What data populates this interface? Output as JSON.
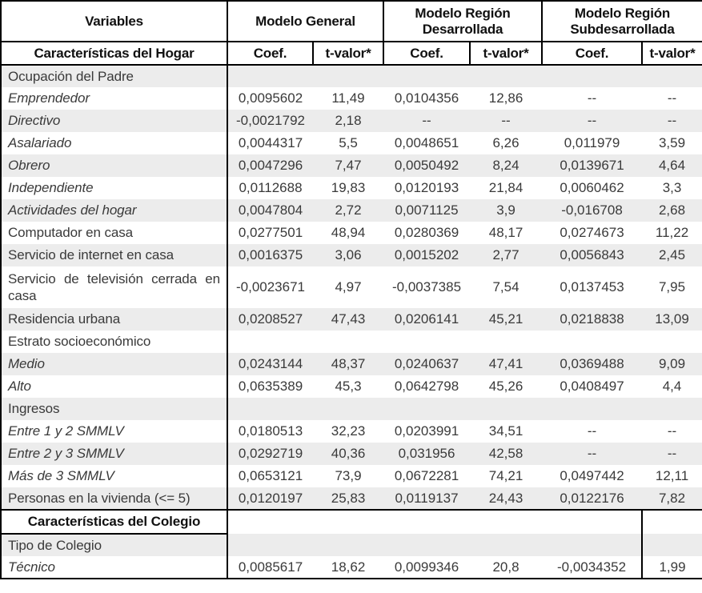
{
  "table": {
    "colors": {
      "band": "#ececec",
      "border": "#000000",
      "body_text": "#3a3a3a",
      "header_text": "#111111",
      "background": "#ffffff"
    },
    "header": {
      "variables": "Variables",
      "row2_label": "Características del Hogar",
      "groups": [
        {
          "label": "Modelo General"
        },
        {
          "label": "Modelo Región Desarrollada"
        },
        {
          "label": "Modelo Región Subdesarrollada"
        }
      ],
      "coef": "Coef.",
      "tvalor": "t-valor*"
    },
    "rows": [
      {
        "label": "Ocupación del Padre",
        "variant": "section",
        "flags": [],
        "cells": [
          "",
          "",
          "",
          "",
          "",
          ""
        ]
      },
      {
        "label": "Emprendedor",
        "variant": "italic",
        "flags": [],
        "cells": [
          "0,0095602",
          "11,49",
          "0,0104356",
          "12,86",
          "--",
          "--"
        ]
      },
      {
        "label": "Directivo",
        "variant": "italic",
        "flags": [],
        "cells": [
          "-0,0021792",
          "2,18",
          "--",
          "--",
          "--",
          "--"
        ]
      },
      {
        "label": "Asalariado",
        "variant": "italic",
        "flags": [],
        "cells": [
          "0,0044317",
          "5,5",
          "0,0048651",
          "6,26",
          "0,011979",
          "3,59"
        ]
      },
      {
        "label": "Obrero",
        "variant": "italic",
        "flags": [],
        "cells": [
          "0,0047296",
          "7,47",
          "0,0050492",
          "8,24",
          "0,0139671",
          "4,64"
        ]
      },
      {
        "label": "Independiente",
        "variant": "italic",
        "flags": [],
        "cells": [
          "0,0112688",
          "19,83",
          "0,0120193",
          "21,84",
          "0,0060462",
          "3,3"
        ]
      },
      {
        "label": "Actividades del hogar",
        "variant": "italic",
        "flags": [],
        "cells": [
          "0,0047804",
          "2,72",
          "0,0071125",
          "3,9",
          "-0,016708",
          "2,68"
        ]
      },
      {
        "label": "Computador en casa",
        "variant": "plain",
        "flags": [],
        "cells": [
          "0,0277501",
          "48,94",
          "0,0280369",
          "48,17",
          "0,0274673",
          "11,22"
        ]
      },
      {
        "label": "Servicio de internet en casa",
        "variant": "plain",
        "flags": [],
        "cells": [
          "0,0016375",
          "3,06",
          "0,0015202",
          "2,77",
          "0,0056843",
          "2,45"
        ]
      },
      {
        "label": "Servicio de televisión cerrada en casa",
        "variant": "wrap",
        "flags": [],
        "cells": [
          "-0,0023671",
          "4,97",
          "-0,0037385",
          "7,54",
          "0,0137453",
          "7,95"
        ]
      },
      {
        "label": "Residencia urbana",
        "variant": "plain",
        "flags": [],
        "cells": [
          "0,0208527",
          "47,43",
          "0,0206141",
          "45,21",
          "0,0218838",
          "13,09"
        ]
      },
      {
        "label": "Estrato socioeconómico",
        "variant": "section",
        "flags": [],
        "cells": [
          "",
          "",
          "",
          "",
          "",
          ""
        ]
      },
      {
        "label": "Medio",
        "variant": "italic",
        "flags": [],
        "cells": [
          "0,0243144",
          "48,37",
          "0,0240637",
          "47,41",
          "0,0369488",
          "9,09"
        ]
      },
      {
        "label": "Alto",
        "variant": "italic",
        "flags": [],
        "cells": [
          "0,0635389",
          "45,3",
          "0,0642798",
          "45,26",
          "0,0408497",
          "4,4"
        ]
      },
      {
        "label": "Ingresos",
        "variant": "section",
        "flags": [],
        "cells": [
          "",
          "",
          "",
          "",
          "",
          ""
        ]
      },
      {
        "label": "Entre 1 y 2 SMMLV",
        "variant": "italic",
        "flags": [],
        "cells": [
          "0,0180513",
          "32,23",
          "0,0203991",
          "34,51",
          "--",
          "--"
        ]
      },
      {
        "label": "Entre 2 y 3 SMMLV",
        "variant": "italic",
        "flags": [],
        "cells": [
          "0,0292719",
          "40,36",
          "0,031956",
          "42,58",
          "--",
          "--"
        ]
      },
      {
        "label": "Más de 3 SMMLV",
        "variant": "italic",
        "flags": [],
        "cells": [
          "0,0653121",
          "73,9",
          "0,0672281",
          "74,21",
          "0,0497442",
          "12,11"
        ]
      },
      {
        "label": "Personas en la vivienda (<= 5)",
        "variant": "plain",
        "flags": [
          "rule-below"
        ],
        "cells": [
          "0,0120197",
          "25,83",
          "0,0119137",
          "24,43",
          "0,0122176",
          "7,82"
        ]
      },
      {
        "label": "Características del Colegio",
        "variant": "header2",
        "flags": [
          "s2"
        ],
        "cells": [
          "",
          "",
          "",
          "",
          "",
          ""
        ]
      },
      {
        "label": "Tipo de Colegio",
        "variant": "section",
        "flags": [
          "s2"
        ],
        "cells": [
          "",
          "",
          "",
          "",
          "",
          ""
        ]
      },
      {
        "label": "Técnico",
        "variant": "italic",
        "flags": [
          "s2"
        ],
        "cells": [
          "0,0085617",
          "18,62",
          "0,0099346",
          "20,8",
          "-0,0034352",
          "1,99"
        ]
      }
    ]
  }
}
